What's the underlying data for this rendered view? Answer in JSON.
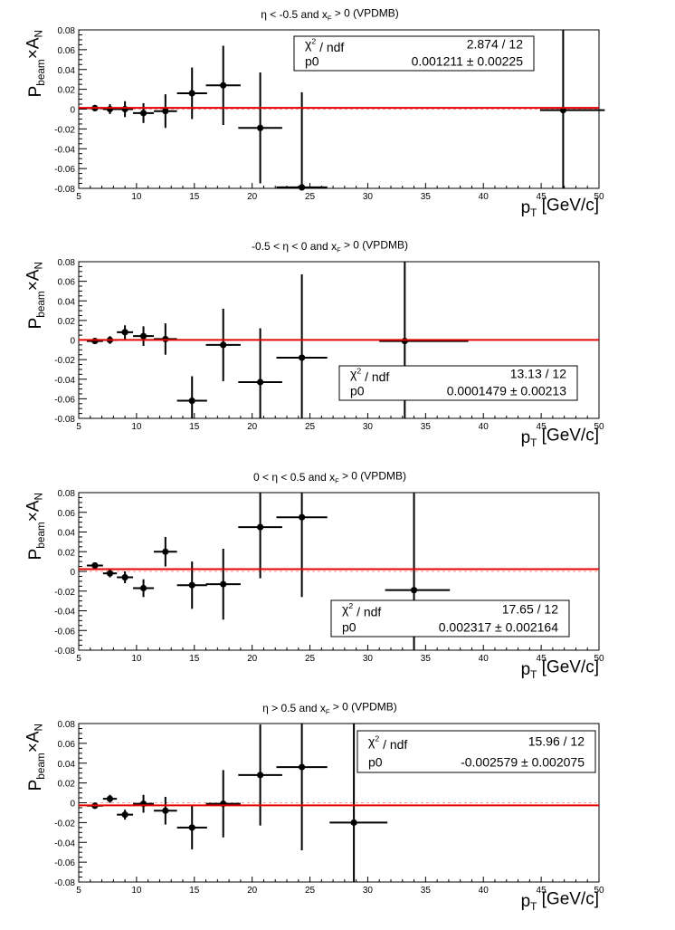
{
  "chart_data": [
    {
      "type": "scatter",
      "title": "η < -0.5 and x_F > 0 (VPDMB)",
      "xlabel": "p_T [GeV/c]",
      "ylabel": "P_beam × A_N",
      "xlim": [
        5,
        50
      ],
      "ylim": [
        -0.08,
        0.08
      ],
      "x_ticks": [
        "5",
        "10",
        "15",
        "20",
        "25",
        "30",
        "35",
        "40",
        "45",
        "50"
      ],
      "y_ticks": [
        "-0.08",
        "-0.06",
        "-0.04",
        "-0.02",
        "0",
        "0.02",
        "0.04",
        "0.06",
        "0.08"
      ],
      "points": [
        {
          "x": 6.4,
          "y": 0.001,
          "xerr": [
            0.7,
            0.7
          ],
          "yerr": [
            0.002,
            0.002
          ]
        },
        {
          "x": 7.7,
          "y": 0.0,
          "xerr": [
            0.6,
            0.6
          ],
          "yerr": [
            0.005,
            0.005
          ]
        },
        {
          "x": 9.0,
          "y": 0.0,
          "xerr": [
            0.7,
            0.7
          ],
          "yerr": [
            0.008,
            0.008
          ]
        },
        {
          "x": 10.6,
          "y": -0.004,
          "xerr": [
            0.9,
            0.9
          ],
          "yerr": [
            0.01,
            0.01
          ]
        },
        {
          "x": 12.5,
          "y": -0.002,
          "xerr": [
            1.0,
            1.0
          ],
          "yerr": [
            0.017,
            0.017
          ]
        },
        {
          "x": 14.8,
          "y": 0.016,
          "xerr": [
            1.3,
            1.3
          ],
          "yerr": [
            0.026,
            0.026
          ]
        },
        {
          "x": 17.5,
          "y": 0.024,
          "xerr": [
            1.5,
            1.5
          ],
          "yerr": [
            0.04,
            0.04
          ]
        },
        {
          "x": 20.7,
          "y": -0.019,
          "xerr": [
            1.9,
            1.9
          ],
          "yerr": [
            0.056,
            0.056
          ]
        },
        {
          "x": 24.3,
          "y": -0.079,
          "xerr": [
            2.2,
            2.2
          ],
          "yerr": [
            0.096,
            0.096
          ]
        },
        {
          "x": 46.9,
          "y": -0.001,
          "xerr": [
            2.0,
            3.6
          ],
          "yerr": [
            0.12,
            0.12
          ]
        }
      ],
      "fit": 0.001211,
      "stats": {
        "chi2_label": "χ² / ndf",
        "chi2_value": "2.874 / 12",
        "p0_label": "p0",
        "p0_value": "0.001211 ± 0.00225",
        "position": "top-right"
      }
    },
    {
      "type": "scatter",
      "title": "-0.5 < η < 0 and x_F > 0 (VPDMB)",
      "xlabel": "p_T [GeV/c]",
      "ylabel": "P_beam × A_N",
      "xlim": [
        5,
        50
      ],
      "ylim": [
        -0.08,
        0.08
      ],
      "x_ticks": [
        "5",
        "10",
        "15",
        "20",
        "25",
        "30",
        "35",
        "40",
        "45",
        "50"
      ],
      "y_ticks": [
        "-0.08",
        "-0.06",
        "-0.04",
        "-0.02",
        "0",
        "0.02",
        "0.04",
        "0.06",
        "0.08"
      ],
      "points": [
        {
          "x": 6.4,
          "y": -0.001,
          "xerr": [
            0.7,
            0.7
          ],
          "yerr": [
            0.002,
            0.002
          ]
        },
        {
          "x": 7.7,
          "y": 0.0,
          "xerr": [
            0.6,
            0.6
          ],
          "yerr": [
            0.004,
            0.004
          ]
        },
        {
          "x": 9.0,
          "y": 0.008,
          "xerr": [
            0.7,
            0.7
          ],
          "yerr": [
            0.007,
            0.007
          ]
        },
        {
          "x": 10.6,
          "y": 0.004,
          "xerr": [
            0.9,
            0.9
          ],
          "yerr": [
            0.01,
            0.01
          ]
        },
        {
          "x": 12.5,
          "y": 0.001,
          "xerr": [
            1.0,
            1.0
          ],
          "yerr": [
            0.016,
            0.016
          ]
        },
        {
          "x": 14.8,
          "y": -0.062,
          "xerr": [
            1.3,
            1.3
          ],
          "yerr": [
            0.025,
            0.025
          ]
        },
        {
          "x": 17.5,
          "y": -0.005,
          "xerr": [
            1.5,
            1.5
          ],
          "yerr": [
            0.037,
            0.037
          ]
        },
        {
          "x": 20.7,
          "y": -0.043,
          "xerr": [
            1.9,
            1.9
          ],
          "yerr": [
            0.055,
            0.055
          ]
        },
        {
          "x": 24.3,
          "y": -0.018,
          "xerr": [
            2.2,
            2.2
          ],
          "yerr": [
            0.085,
            0.085
          ]
        },
        {
          "x": 33.2,
          "y": -0.001,
          "xerr": [
            2.2,
            5.5
          ],
          "yerr": [
            0.12,
            0.12
          ]
        }
      ],
      "fit": 0.0001479,
      "stats": {
        "chi2_label": "χ² / ndf",
        "chi2_value": "13.13 / 12",
        "p0_label": "p0",
        "p0_value": "0.0001479 ± 0.00213",
        "position": "bottom-right"
      }
    },
    {
      "type": "scatter",
      "title": "0 < η < 0.5 and x_F > 0 (VPDMB)",
      "xlabel": "p_T [GeV/c]",
      "ylabel": "P_beam × A_N",
      "xlim": [
        5,
        50
      ],
      "ylim": [
        -0.08,
        0.08
      ],
      "x_ticks": [
        "5",
        "10",
        "15",
        "20",
        "25",
        "30",
        "35",
        "40",
        "45",
        "50"
      ],
      "y_ticks": [
        "-0.08",
        "-0.06",
        "-0.04",
        "-0.02",
        "0",
        "0.02",
        "0.04",
        "0.06",
        "0.08"
      ],
      "points": [
        {
          "x": 6.4,
          "y": 0.006,
          "xerr": [
            0.7,
            0.7
          ],
          "yerr": [
            0.002,
            0.002
          ]
        },
        {
          "x": 7.7,
          "y": -0.002,
          "xerr": [
            0.6,
            0.6
          ],
          "yerr": [
            0.004,
            0.004
          ]
        },
        {
          "x": 9.0,
          "y": -0.006,
          "xerr": [
            0.7,
            0.7
          ],
          "yerr": [
            0.006,
            0.006
          ]
        },
        {
          "x": 10.6,
          "y": -0.017,
          "xerr": [
            0.9,
            0.9
          ],
          "yerr": [
            0.009,
            0.009
          ]
        },
        {
          "x": 12.5,
          "y": 0.02,
          "xerr": [
            1.0,
            1.0
          ],
          "yerr": [
            0.015,
            0.015
          ]
        },
        {
          "x": 14.8,
          "y": -0.014,
          "xerr": [
            1.3,
            1.3
          ],
          "yerr": [
            0.024,
            0.024
          ]
        },
        {
          "x": 17.5,
          "y": -0.013,
          "xerr": [
            1.5,
            1.5
          ],
          "yerr": [
            0.036,
            0.036
          ]
        },
        {
          "x": 20.7,
          "y": 0.045,
          "xerr": [
            1.9,
            1.9
          ],
          "yerr": [
            0.052,
            0.052
          ]
        },
        {
          "x": 24.3,
          "y": 0.055,
          "xerr": [
            2.2,
            2.2
          ],
          "yerr": [
            0.081,
            0.081
          ]
        },
        {
          "x": 34.0,
          "y": -0.019,
          "xerr": [
            2.5,
            3.1
          ],
          "yerr": [
            0.12,
            0.12
          ]
        }
      ],
      "fit": 0.002317,
      "stats": {
        "chi2_label": "χ² / ndf",
        "chi2_value": "17.65 / 12",
        "p0_label": "p0",
        "p0_value": "0.002317 ± 0.002164",
        "position": "bottom-right"
      }
    },
    {
      "type": "scatter",
      "title": "η > 0.5 and x_F > 0 (VPDMB)",
      "xlabel": "p_T [GeV/c]",
      "ylabel": "P_beam × A_N",
      "xlim": [
        5,
        50
      ],
      "ylim": [
        -0.08,
        0.08
      ],
      "x_ticks": [
        "5",
        "10",
        "15",
        "20",
        "25",
        "30",
        "35",
        "40",
        "45",
        "50"
      ],
      "y_ticks": [
        "-0.08",
        "-0.06",
        "-0.04",
        "-0.02",
        "0",
        "0.02",
        "0.04",
        "0.06",
        "0.08"
      ],
      "points": [
        {
          "x": 6.4,
          "y": -0.003,
          "xerr": [
            0.7,
            0.7
          ],
          "yerr": [
            0.002,
            0.002
          ]
        },
        {
          "x": 7.7,
          "y": 0.004,
          "xerr": [
            0.6,
            0.6
          ],
          "yerr": [
            0.004,
            0.004
          ]
        },
        {
          "x": 9.0,
          "y": -0.012,
          "xerr": [
            0.7,
            0.7
          ],
          "yerr": [
            0.005,
            0.005
          ]
        },
        {
          "x": 10.6,
          "y": -0.001,
          "xerr": [
            0.9,
            0.9
          ],
          "yerr": [
            0.009,
            0.009
          ]
        },
        {
          "x": 12.5,
          "y": -0.008,
          "xerr": [
            1.0,
            1.0
          ],
          "yerr": [
            0.014,
            0.014
          ]
        },
        {
          "x": 14.8,
          "y": -0.025,
          "xerr": [
            1.3,
            1.3
          ],
          "yerr": [
            0.022,
            0.022
          ]
        },
        {
          "x": 17.5,
          "y": -0.001,
          "xerr": [
            1.5,
            1.5
          ],
          "yerr": [
            0.034,
            0.034
          ]
        },
        {
          "x": 20.7,
          "y": 0.028,
          "xerr": [
            1.9,
            1.9
          ],
          "yerr": [
            0.051,
            0.051
          ]
        },
        {
          "x": 24.3,
          "y": 0.036,
          "xerr": [
            2.2,
            2.2
          ],
          "yerr": [
            0.084,
            0.084
          ]
        },
        {
          "x": 28.8,
          "y": -0.02,
          "xerr": [
            2.1,
            2.9
          ],
          "yerr": [
            0.12,
            0.12
          ]
        }
      ],
      "fit": -0.002579,
      "stats": {
        "chi2_label": "χ² / ndf",
        "chi2_value": "15.96 / 12",
        "p0_label": "p0",
        "p0_value": "-0.002579 ± 0.002075",
        "position": "top-right"
      }
    }
  ]
}
